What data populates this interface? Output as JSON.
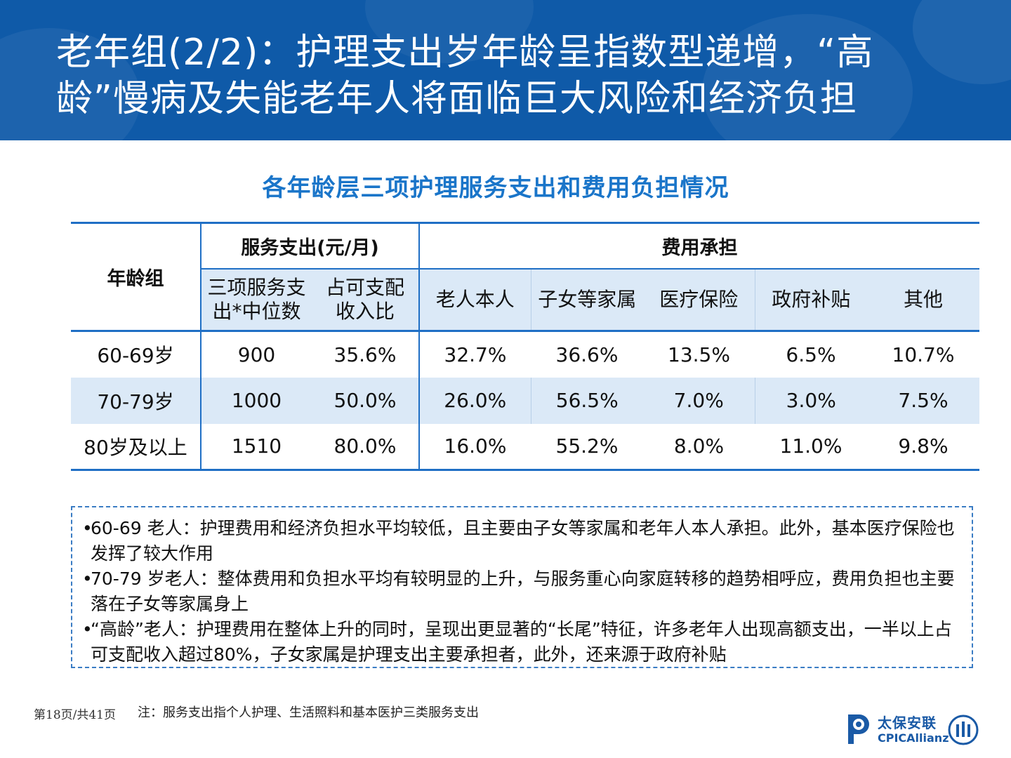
{
  "header": {
    "title_line1": "老年组(2/2)：护理支出岁年龄呈指数型递增，“高",
    "title_line2": "龄”慢病及失能老年人将面临巨大风险和经济负担"
  },
  "table": {
    "title": "各年龄层三项护理服务支出和费用负担情况",
    "group_headers": {
      "age_group": "年龄组",
      "service_spend": "服务支出(元/月)",
      "cost_bearing": "费用承担"
    },
    "sub_headers": [
      [
        "三项服务支",
        "出*中位数"
      ],
      [
        "占可支配",
        "收入比"
      ],
      "老人本人",
      "子女等家属",
      "医疗保险",
      "政府补贴",
      "其他"
    ],
    "rows": [
      {
        "age": "60-69岁",
        "median": "900",
        "ratio": "35.6%",
        "self": "32.7%",
        "family": "36.6%",
        "medical": "13.5%",
        "gov": "6.5%",
        "other": "10.7%"
      },
      {
        "age": "70-79岁",
        "median": "1000",
        "ratio": "50.0%",
        "self": "26.0%",
        "family": "56.5%",
        "medical": "7.0%",
        "gov": "3.0%",
        "other": "7.5%"
      },
      {
        "age": "80岁及以上",
        "median": "1510",
        "ratio": "80.0%",
        "self": "16.0%",
        "family": "55.2%",
        "medical": "8.0%",
        "gov": "11.0%",
        "other": "9.8%"
      }
    ]
  },
  "notes": [
    {
      "bullet": "•",
      "text": "60-69 老人：护理费用和经济负担水平均较低，且主要由子女等家属和老年人本人承担。此外，基本医疗保险也发挥了较大作用"
    },
    {
      "bullet": "•",
      "text": "70-79 岁老人：整体费用和负担水平均有较明显的上升，与服务重心向家庭转移的趋势相呼应，费用负担也主要落在子女等家属身上"
    },
    {
      "bullet": "•",
      "text": "“高龄”老人：护理费用在整体上升的同时，呈现出更显著的“长尾”特征，许多老年人出现高额支出，一半以上占可支配收入超过80%，子女家属是护理支出主要承担者，此外，还来源于政府补贴"
    }
  ],
  "footer": {
    "page": "第18页/共41页",
    "footnote": "注：服务支出指个人护理、生活照料和基本医护三类服务支出",
    "logo_cn": "太保安联",
    "logo_en": "CPICAllianz"
  },
  "colors": {
    "banner": "#0f5aa8",
    "accent": "#1a75c9",
    "table_line": "#1f6fc5",
    "band": "#dbe9f7"
  }
}
